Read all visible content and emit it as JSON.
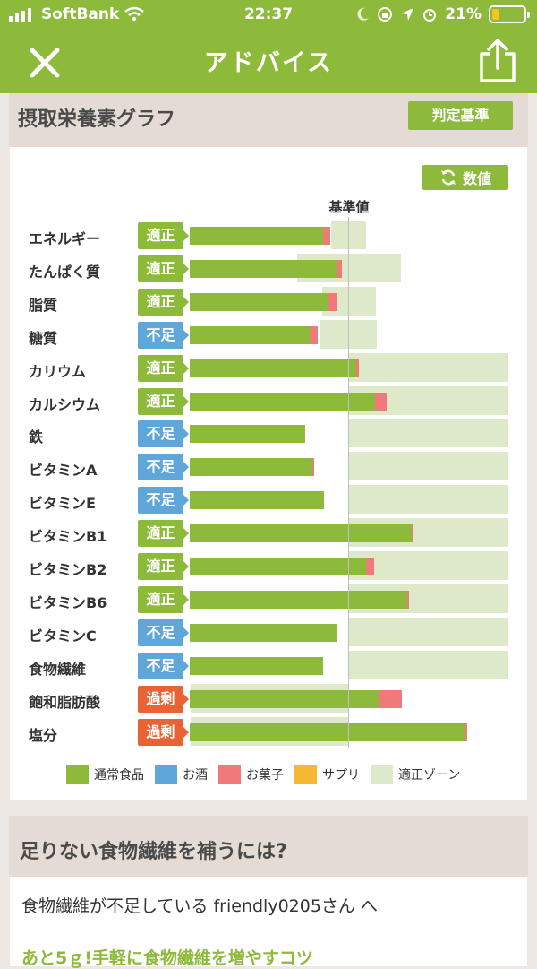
{
  "status_bar": {
    "carrier": "SoftBank",
    "time": "22:37",
    "battery": "21%"
  },
  "nav": {
    "title": "アドバイス"
  },
  "graph_section": {
    "title": "摂取栄養素グラフ",
    "judge_button": "判定基準",
    "toggle_button": "数値",
    "reference_label": "基準値"
  },
  "colors": {
    "normal_food": "#8dba3a",
    "alcohol": "#5fa6d9",
    "snacks": "#f07a7a",
    "supplement": "#f6b733",
    "ok_zone": "#dde9c9",
    "over_badge": "#ea6334"
  },
  "nutrients": [
    {
      "name": "エネルギー",
      "status": "適正",
      "level": "ok"
    },
    {
      "name": "たんぱく質",
      "status": "適正",
      "level": "ok"
    },
    {
      "name": "脂質",
      "status": "適正",
      "level": "ok"
    },
    {
      "name": "糖質",
      "status": "不足",
      "level": "low"
    },
    {
      "name": "カリウム",
      "status": "適正",
      "level": "ok"
    },
    {
      "name": "カルシウム",
      "status": "適正",
      "level": "ok"
    },
    {
      "name": "鉄",
      "status": "不足",
      "level": "low"
    },
    {
      "name": "ビタミンA",
      "status": "不足",
      "level": "low"
    },
    {
      "name": "ビタミンE",
      "status": "不足",
      "level": "low"
    },
    {
      "name": "ビタミンB1",
      "status": "適正",
      "level": "ok"
    },
    {
      "name": "ビタミンB2",
      "status": "適正",
      "level": "ok"
    },
    {
      "name": "ビタミンB6",
      "status": "適正",
      "level": "ok"
    },
    {
      "name": "ビタミンC",
      "status": "不足",
      "level": "low"
    },
    {
      "name": "食物繊維",
      "status": "不足",
      "level": "low"
    },
    {
      "name": "飽和脂肪酸",
      "status": "過剰",
      "level": "over"
    },
    {
      "name": "塩分",
      "status": "過剰",
      "level": "over"
    }
  ],
  "legend": [
    "通常食品",
    "お酒",
    "お菓子",
    "サプリ",
    "適正ゾーン"
  ],
  "advice_section": {
    "title": "足りない食物繊維を補うには?",
    "message": "食物繊維が不足している friendly0205さん へ",
    "subtitle": "あと5ｇ!手軽に食物繊維を増やすコツ"
  }
}
